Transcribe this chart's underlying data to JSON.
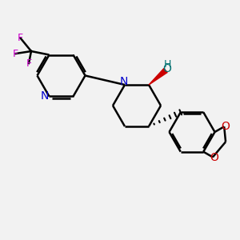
{
  "bg_color": "#f2f2f2",
  "bond_color": "#000000",
  "n_color": "#0000cc",
  "o_color": "#cc0000",
  "f_color": "#cc00cc",
  "oh_color": "#007070",
  "line_width": 1.8,
  "dbo": 0.08,
  "figsize": [
    3.0,
    3.0
  ],
  "dpi": 100,
  "xlim": [
    0,
    10
  ],
  "ylim": [
    0,
    10
  ]
}
